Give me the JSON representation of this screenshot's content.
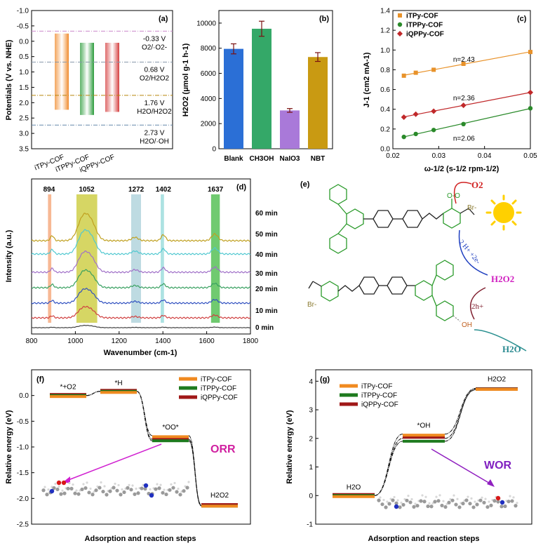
{
  "chart_data": [
    {
      "panel": "(a)",
      "type": "bar",
      "ylabel": "Potentials (V vs. NHE)",
      "ylim": [
        -1.0,
        3.5
      ],
      "yticks": [
        -1.0,
        -0.5,
        0.0,
        0.5,
        1.0,
        1.5,
        2.0,
        2.5,
        3.0,
        3.5
      ],
      "ytick_labels": [
        "-1.0",
        "-0.5",
        "0.0",
        "0.5",
        "1.0",
        "1.5",
        "2.0",
        "2.5",
        "3.0",
        "3.5"
      ],
      "categories": [
        "iTPy-COF",
        "iTPPy-COF",
        "iQPPy-COF"
      ],
      "bars": [
        {
          "name": "iTPy-COF",
          "top": -0.25,
          "bottom": 2.23,
          "color": "#f08a2c"
        },
        {
          "name": "iTPPy-COF",
          "top": 0.05,
          "bottom": 2.4,
          "color": "#2a9b3a"
        },
        {
          "name": "iQPPy-COF",
          "top": 0.05,
          "bottom": 2.3,
          "color": "#d53e3e"
        }
      ],
      "reference_lines": [
        {
          "value": -0.33,
          "label_v": "-0.33 V",
          "label_r": "O2/·O2-",
          "color": "#cc88cc"
        },
        {
          "value": 0.68,
          "label_v": "0.68 V",
          "label_r": "O2/H2O2",
          "color": "#8899aa"
        },
        {
          "value": 1.76,
          "label_v": "1.76 V",
          "label_r": "H2O/H2O2",
          "color": "#b8860b"
        },
        {
          "value": 2.73,
          "label_v": "2.73 V",
          "label_r": "H2O/·OH",
          "color": "#6688aa"
        }
      ]
    },
    {
      "panel": "(b)",
      "type": "bar",
      "ylabel": "H2O2 (μmol g-1 h-1)",
      "ylim": [
        0,
        11000
      ],
      "yticks": [
        0,
        2000,
        4000,
        6000,
        8000,
        10000
      ],
      "ytick_labels": [
        "0",
        "2000",
        "4000",
        "6000",
        "8000",
        "10000"
      ],
      "categories": [
        "Blank",
        "CH3OH",
        "NaIO3",
        "NBT"
      ],
      "values": [
        7950,
        9550,
        3050,
        7300
      ],
      "errors": [
        400,
        600,
        150,
        350
      ],
      "colors": [
        "#2b6fd6",
        "#34a868",
        "#a979d9",
        "#c99a12"
      ]
    },
    {
      "panel": "(c)",
      "type": "scatter",
      "xlabel": "ω-1/2 (s-1/2 rpm-1/2)",
      "ylabel": "J-1 (cm2 mA-1)",
      "xlim": [
        0.02,
        0.05
      ],
      "ylim": [
        0.0,
        1.4
      ],
      "xticks": [
        0.02,
        0.03,
        0.04,
        0.05
      ],
      "xtick_labels": [
        "0.02",
        "0.03",
        "0.04",
        "0.05"
      ],
      "yticks": [
        0.0,
        0.2,
        0.4,
        0.6,
        0.8,
        1.0,
        1.2,
        1.4
      ],
      "ytick_labels": [
        "0.0",
        "0.2",
        "0.4",
        "0.6",
        "0.8",
        "1.0",
        "1.2",
        "1.4"
      ],
      "series": [
        {
          "name": "iTPy-COF",
          "color": "#e8922a",
          "marker": "square",
          "x": [
            0.0224,
            0.025,
            0.0289,
            0.0354,
            0.05
          ],
          "y": [
            0.74,
            0.77,
            0.8,
            0.86,
            0.98
          ],
          "annotation": "n=2.43"
        },
        {
          "name": "iTPPy-COF",
          "color": "#2a8a2a",
          "marker": "circle",
          "x": [
            0.0224,
            0.025,
            0.0289,
            0.0354,
            0.05
          ],
          "y": [
            0.12,
            0.15,
            0.19,
            0.25,
            0.41
          ],
          "annotation": "n=2.06"
        },
        {
          "name": "iQPPy-COF",
          "color": "#c0282a",
          "marker": "diamond",
          "x": [
            0.0224,
            0.025,
            0.0289,
            0.0354,
            0.05
          ],
          "y": [
            0.32,
            0.35,
            0.38,
            0.44,
            0.57
          ],
          "annotation": "n=2.36"
        }
      ]
    },
    {
      "panel": "(d)",
      "type": "line",
      "xlabel": "Wavenumber (cm-1)",
      "ylabel": "Intensity (a.u.)",
      "xlim": [
        800,
        1800
      ],
      "xticks": [
        800,
        1000,
        1200,
        1400,
        1600,
        1800
      ],
      "xtick_labels": [
        "800",
        "1000",
        "1200",
        "1400",
        "1600",
        "1800"
      ],
      "highlights": [
        {
          "label": "894",
          "from": 875,
          "to": 890,
          "color": "#f4a070",
          "label_color": "#c0603a"
        },
        {
          "label": "1052",
          "from": 1005,
          "to": 1100,
          "color": "#c8c830",
          "label_color": "#8a8a10"
        },
        {
          "label": "1272",
          "from": 1255,
          "to": 1300,
          "color": "#a8cfd8",
          "label_color": "#4a8aa0"
        },
        {
          "label": "1402",
          "from": 1390,
          "to": 1405,
          "color": "#90d8d8",
          "label_color": "#30a0a0"
        },
        {
          "label": "1637",
          "from": 1620,
          "to": 1660,
          "color": "#40b840",
          "label_color": "#2a9a2a"
        }
      ],
      "series": [
        {
          "name": "0 min",
          "color": "#404040",
          "offset": 0
        },
        {
          "name": "10 min",
          "color": "#d04040",
          "offset": 1
        },
        {
          "name": "20 min",
          "color": "#3050c0",
          "offset": 2
        },
        {
          "name": "30 min",
          "color": "#38a060",
          "offset": 3
        },
        {
          "name": "40 min",
          "color": "#a070c8",
          "offset": 4
        },
        {
          "name": "50 min",
          "color": "#50c8d0",
          "offset": 5
        },
        {
          "name": "60 min",
          "color": "#c0a020",
          "offset": 6
        }
      ]
    },
    {
      "panel": "(f)",
      "type": "line",
      "xlabel": "Adsorption and reaction steps",
      "ylabel": "Relative energy (eV)",
      "ylim": [
        -2.5,
        0.5
      ],
      "yticks": [
        -2.5,
        -2.0,
        -1.5,
        -1.0,
        -0.5,
        0.0
      ],
      "ytick_labels": [
        "-2.5",
        "-2.0",
        "-1.5",
        "-1.0",
        "-0.5",
        "0.0"
      ],
      "steps": [
        "*+O2",
        "*H",
        "*OO*",
        "H2O2"
      ],
      "series": [
        {
          "name": "iTPy-COF",
          "color": "#f08a20",
          "values": [
            0.0,
            0.08,
            -0.78,
            -2.13
          ]
        },
        {
          "name": "iTPPy-COF",
          "color": "#1e7a1e",
          "values": [
            0.0,
            0.08,
            -0.88,
            -2.15
          ]
        },
        {
          "name": "iQPPy-COF",
          "color": "#a01818",
          "values": [
            0.0,
            0.08,
            -0.85,
            -2.14
          ]
        }
      ],
      "annotation": "ORR"
    },
    {
      "panel": "(g)",
      "type": "line",
      "xlabel": "Adsorption and reaction steps",
      "ylabel": "Relative energy (eV)",
      "ylim": [
        -1,
        4.4
      ],
      "yticks": [
        -1,
        0,
        1,
        2,
        3,
        4
      ],
      "ytick_labels": [
        "-1",
        "0",
        "1",
        "2",
        "3",
        "4"
      ],
      "steps": [
        "H2O",
        "*OH",
        "H2O2"
      ],
      "series": [
        {
          "name": "iTPy-COF",
          "color": "#f08a20",
          "values": [
            0.0,
            2.15,
            3.75
          ]
        },
        {
          "name": "iTPPy-COF",
          "color": "#1e7a1e",
          "values": [
            0.0,
            1.9,
            3.72
          ]
        },
        {
          "name": "iQPPy-COF",
          "color": "#a01818",
          "values": [
            0.0,
            2.0,
            3.7
          ]
        }
      ],
      "annotation": "WOR"
    }
  ],
  "panel_e": {
    "label": "(e)",
    "o2": "O2",
    "h2o2": "H2O2",
    "h2o": "H2O",
    "proton_label": "2 H+ +2e-",
    "hole_label": "2h+",
    "oh_label": "OH",
    "br_label": "Br-",
    "oo_label": "O-O"
  },
  "colors": {
    "orange": "#f08a20",
    "green": "#1e7a1e",
    "red": "#a01818",
    "magenta": "#d020a0",
    "purple": "#8020c0"
  }
}
